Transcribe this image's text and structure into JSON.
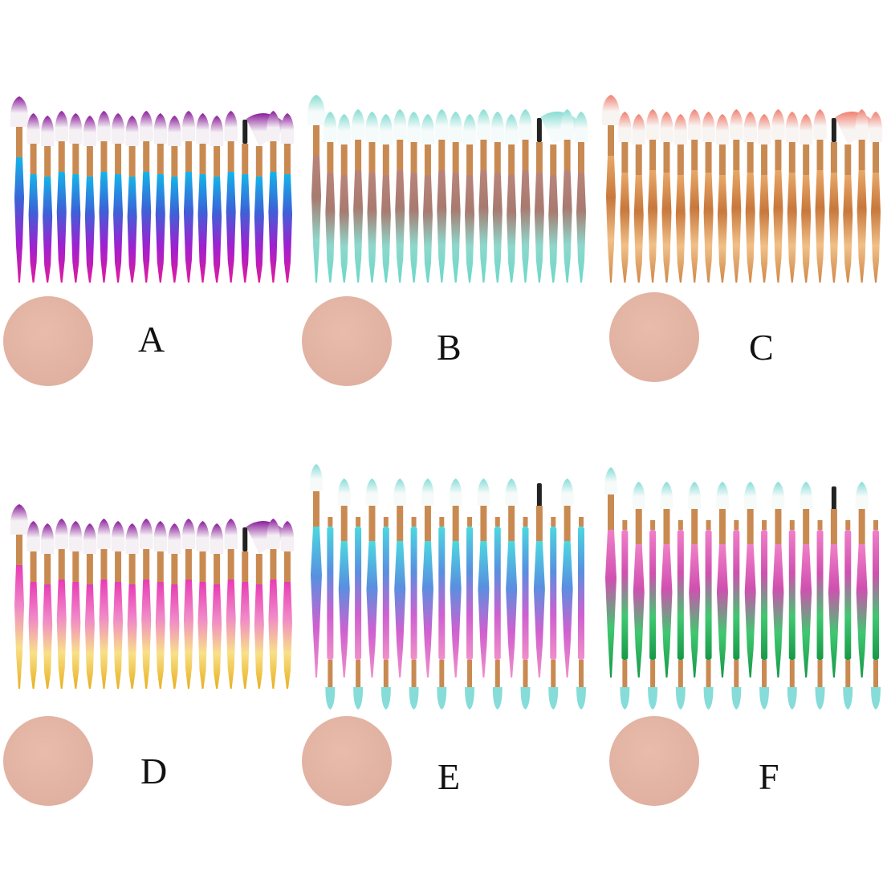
{
  "variants": [
    {
      "label": "A",
      "brushes": 20,
      "double_ended": false,
      "handle_colors": [
        "#14b4e8",
        "#3a64d8",
        "#a020d0",
        "#e01c9c"
      ],
      "bristle_root": "#f4f0f4",
      "bristle_tip": "#8a1c9a",
      "ferrule": "#c98a52"
    },
    {
      "label": "B",
      "brushes": 20,
      "double_ended": false,
      "handle_colors": [
        "#b8847a",
        "#a87a70",
        "#8ed8cc",
        "#6cd8c8"
      ],
      "bristle_root": "#f4fbfa",
      "bristle_tip": "#86dcd2",
      "ferrule": "#c98a52"
    },
    {
      "label": "C",
      "brushes": 20,
      "double_ended": false,
      "handle_colors": [
        "#e8a868",
        "#c8783c",
        "#f0c088",
        "#d08848"
      ],
      "bristle_root": "#f8f4f2",
      "bristle_tip": "#f08070",
      "ferrule": "#c98a52"
    },
    {
      "label": "D",
      "brushes": 20,
      "double_ended": false,
      "handle_colors": [
        "#e83cb4",
        "#f088c8",
        "#f8e088",
        "#e8b020"
      ],
      "bristle_root": "#f4f0f4",
      "bristle_tip": "#8a1c9a",
      "ferrule": "#c98a52"
    },
    {
      "label": "E",
      "brushes": 20,
      "double_ended": true,
      "handle_colors": [
        "#4cd8e0",
        "#5890e0",
        "#d060d0",
        "#f090c8"
      ],
      "bristle_root": "#f6fbfa",
      "bristle_tip": "#86dcd8",
      "ferrule": "#c98a52"
    },
    {
      "label": "F",
      "brushes": 20,
      "double_ended": true,
      "handle_colors": [
        "#f080c8",
        "#d050b0",
        "#40c870",
        "#189848"
      ],
      "bristle_root": "#f6fbfa",
      "bristle_tip": "#86dcd8",
      "ferrule": "#c98a52"
    }
  ],
  "sponge_color": "#e0b0a0",
  "spoolie_color": "#222222"
}
